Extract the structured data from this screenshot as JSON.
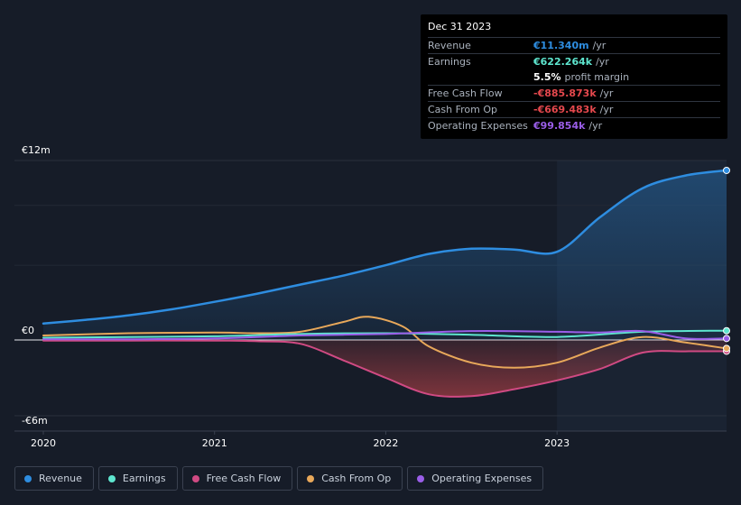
{
  "chart_data": {
    "type": "line",
    "title": "",
    "x_ticks": [
      2020,
      2021,
      2022,
      2023
    ],
    "x_tick_labels": [
      "2020",
      "2021",
      "2022",
      "2023"
    ],
    "xlim": [
      2020.0,
      2023.99
    ],
    "ylim": [
      -6.0,
      12.0
    ],
    "y_tick_labels": {
      "top": "€12m",
      "zero": "€0",
      "bottom": "-€6m"
    },
    "highlight_start": 2023.0,
    "series": [
      {
        "name": "Revenue",
        "color": "#2e8de0",
        "fill": true,
        "values_x": [
          2020.0,
          2020.25,
          2020.5,
          2020.75,
          2021.0,
          2021.25,
          2021.5,
          2021.75,
          2022.0,
          2022.25,
          2022.5,
          2022.75,
          2023.0,
          2023.25,
          2023.5,
          2023.75,
          2023.99
        ],
        "values_y": [
          1.1,
          1.35,
          1.65,
          2.05,
          2.55,
          3.1,
          3.7,
          4.3,
          5.0,
          5.75,
          6.1,
          6.05,
          5.9,
          8.2,
          10.15,
          11.0,
          11.34
        ]
      },
      {
        "name": "Earnings",
        "color": "#5ee6cf",
        "fill": false,
        "values_x": [
          2020.0,
          2020.5,
          2021.0,
          2021.5,
          2022.0,
          2022.5,
          2023.0,
          2023.5,
          2023.99
        ],
        "values_y": [
          0.15,
          0.2,
          0.25,
          0.4,
          0.45,
          0.35,
          0.2,
          0.55,
          0.62
        ]
      },
      {
        "name": "Free Cash Flow",
        "color": "#d04a83",
        "fill": true,
        "values_x": [
          2020.0,
          2020.5,
          2021.0,
          2021.25,
          2021.5,
          2021.75,
          2022.0,
          2022.25,
          2022.5,
          2022.75,
          2023.0,
          2023.25,
          2023.5,
          2023.75,
          2023.99
        ],
        "values_y": [
          -0.05,
          -0.05,
          -0.05,
          -0.1,
          -0.3,
          -1.6,
          -3.0,
          -4.3,
          -4.45,
          -3.9,
          -3.2,
          -2.3,
          -1.0,
          -0.9,
          -0.89
        ]
      },
      {
        "name": "Cash From Op",
        "color": "#e8a85a",
        "fill": false,
        "values_x": [
          2020.0,
          2020.5,
          2021.0,
          2021.25,
          2021.5,
          2021.75,
          2021.9,
          2022.1,
          2022.25,
          2022.5,
          2022.75,
          2023.0,
          2023.25,
          2023.5,
          2023.75,
          2023.99
        ],
        "values_y": [
          0.3,
          0.45,
          0.5,
          0.45,
          0.55,
          1.2,
          1.55,
          0.9,
          -0.5,
          -1.8,
          -2.2,
          -1.8,
          -0.6,
          0.2,
          -0.2,
          -0.67
        ]
      },
      {
        "name": "Operating Expenses",
        "color": "#9a5ee8",
        "fill": false,
        "values_x": [
          2020.0,
          2020.5,
          2021.0,
          2021.5,
          2022.0,
          2022.5,
          2023.0,
          2023.25,
          2023.5,
          2023.75,
          2023.99
        ],
        "values_y": [
          0.05,
          0.05,
          0.1,
          0.3,
          0.4,
          0.6,
          0.55,
          0.5,
          0.6,
          0.1,
          0.1
        ]
      }
    ]
  },
  "tooltip": {
    "date": "Dec 31 2023",
    "rows": [
      {
        "label": "Revenue",
        "value": "€11.340m",
        "unit": "/yr",
        "color": "#2e8de0"
      },
      {
        "label": "Earnings",
        "value": "€622.264k",
        "unit": "/yr",
        "color": "#5ee6cf"
      },
      {
        "label": "",
        "value": "5.5%",
        "unit": "profit margin",
        "color": "#ffffff"
      },
      {
        "label": "Free Cash Flow",
        "value": "-€885.873k",
        "unit": "/yr",
        "color": "#e5484d"
      },
      {
        "label": "Cash From Op",
        "value": "-€669.483k",
        "unit": "/yr",
        "color": "#e5484d"
      },
      {
        "label": "Operating Expenses",
        "value": "€99.854k",
        "unit": "/yr",
        "color": "#9a5ee8"
      }
    ]
  },
  "legend": [
    {
      "label": "Revenue",
      "color": "#2e8de0"
    },
    {
      "label": "Earnings",
      "color": "#5ee6cf"
    },
    {
      "label": "Free Cash Flow",
      "color": "#d04a83"
    },
    {
      "label": "Cash From Op",
      "color": "#e8a85a"
    },
    {
      "label": "Operating Expenses",
      "color": "#9a5ee8"
    }
  ]
}
